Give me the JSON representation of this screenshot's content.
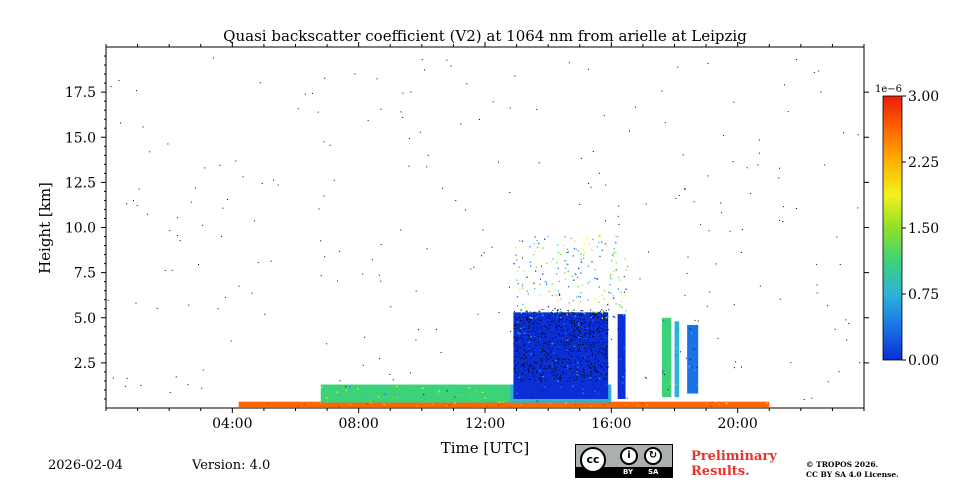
{
  "chart_data": {
    "type": "heatmap",
    "title": "Quasi backscatter coefficient (V2) at 1064 nm from arielle at Leipzig",
    "xlabel": "Time [UTC]",
    "ylabel": "Height [km]",
    "xlim": [
      0,
      24
    ],
    "ylim": [
      0,
      20
    ],
    "x_ticks": [
      {
        "value": 4,
        "label": "04:00"
      },
      {
        "value": 8,
        "label": "08:00"
      },
      {
        "value": 12,
        "label": "12:00"
      },
      {
        "value": 16,
        "label": "16:00"
      },
      {
        "value": 20,
        "label": "20:00"
      }
    ],
    "y_ticks": [
      {
        "value": 2.5,
        "label": "2.5"
      },
      {
        "value": 5.0,
        "label": "5.0"
      },
      {
        "value": 7.5,
        "label": "7.5"
      },
      {
        "value": 10.0,
        "label": "10.0"
      },
      {
        "value": 12.5,
        "label": "12.5"
      },
      {
        "value": 15.0,
        "label": "15.0"
      },
      {
        "value": 17.5,
        "label": "17.5"
      }
    ],
    "colorbar": {
      "min": 0.0,
      "max": 3.0,
      "exponent_label": "1e−6",
      "ticks": [
        {
          "value": 0.0,
          "label": "0.00"
        },
        {
          "value": 0.75,
          "label": "0.75"
        },
        {
          "value": 1.5,
          "label": "1.50"
        },
        {
          "value": 2.25,
          "label": "2.25"
        },
        {
          "value": 3.0,
          "label": "3.00"
        }
      ],
      "colors": [
        "#0b2fd6",
        "#1a72e6",
        "#2cb4d8",
        "#3cd27a",
        "#8fe02a",
        "#f1f21c",
        "#ffb300",
        "#ff6600",
        "#ee1a0a"
      ]
    },
    "regions": [
      {
        "name": "boundary-layer-aerosol",
        "t0": 4.2,
        "t1": 21.0,
        "h0": 0.05,
        "h1": 0.35,
        "value": 2.6
      },
      {
        "name": "aerosol-layer-morning",
        "t0": 6.8,
        "t1": 13.5,
        "h0": 0.3,
        "h1": 1.3,
        "value": 1.2
      },
      {
        "name": "aerosol-layer-midday",
        "t0": 12.8,
        "t1": 16.0,
        "h0": 0.3,
        "h1": 1.3,
        "value": 0.6
      },
      {
        "name": "cloud-block-afternoon",
        "t0": 12.9,
        "t1": 15.9,
        "h0": 0.5,
        "h1": 5.3,
        "value": 0.15
      },
      {
        "name": "cloud-column-16h",
        "t0": 16.2,
        "t1": 16.45,
        "h0": 0.5,
        "h1": 5.2,
        "value": 0.1
      },
      {
        "name": "cloud-column-18h-a",
        "t0": 17.6,
        "t1": 17.9,
        "h0": 0.6,
        "h1": 5.0,
        "value": 1.0
      },
      {
        "name": "cloud-column-18h-b",
        "t0": 18.0,
        "t1": 18.15,
        "h0": 0.6,
        "h1": 4.8,
        "value": 0.9
      },
      {
        "name": "cloud-column-18h-c",
        "t0": 18.4,
        "t1": 18.75,
        "h0": 0.8,
        "h1": 4.6,
        "value": 0.2
      }
    ]
  },
  "footer": {
    "date": "2026-02-04",
    "version": "Version: 4.0",
    "license_badge": {
      "cc": "cc",
      "by": "BY",
      "sa": "SA"
    },
    "preliminary_line1": "Preliminary",
    "preliminary_line2": "Results.",
    "copyright_line1": "© TROPOS 2026.",
    "copyright_line2": "CC BY SA 4.0 License."
  }
}
